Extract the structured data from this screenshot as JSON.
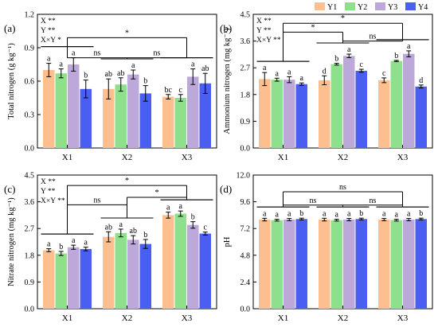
{
  "legend": {
    "items": [
      {
        "label": "Y1",
        "color": "#fdbf90"
      },
      {
        "label": "Y2",
        "color": "#8fe08c"
      },
      {
        "label": "Y3",
        "color": "#bca9d9"
      },
      {
        "label": "Y4",
        "color": "#4a5ef2"
      }
    ],
    "placement": "top-right"
  },
  "chart_data": [
    {
      "type": "bar",
      "panel_label": "(a)",
      "ylabel": "Total nitrogen (g kg⁻¹)",
      "ylim": [
        0,
        1.2
      ],
      "yticks": [
        0.0,
        0.3,
        0.6,
        0.9,
        1.2
      ],
      "categories": [
        "X1",
        "X2",
        "X3"
      ],
      "series": [
        {
          "name": "Y1",
          "values": [
            0.7,
            0.53,
            0.46
          ],
          "errors": [
            0.06,
            0.09,
            0.02
          ],
          "letters": [
            "a",
            "ab",
            "bc"
          ]
        },
        {
          "name": "Y2",
          "values": [
            0.67,
            0.57,
            0.45
          ],
          "errors": [
            0.04,
            0.06,
            0.03
          ],
          "letters": [
            "a",
            "ab",
            "c"
          ]
        },
        {
          "name": "Y3",
          "values": [
            0.75,
            0.66,
            0.64
          ],
          "errors": [
            0.06,
            0.04,
            0.07
          ],
          "letters": [
            "a",
            "a",
            "a"
          ]
        },
        {
          "name": "Y4",
          "values": [
            0.53,
            0.49,
            0.58
          ],
          "errors": [
            0.08,
            0.07,
            0.09
          ],
          "letters": [
            "b",
            "b",
            "ab"
          ]
        }
      ],
      "stats": [
        "X **",
        "Y **",
        "X×Y *"
      ],
      "comparisons": [
        {
          "from": 0,
          "to": 1,
          "level": 0.81,
          "label": "ns"
        },
        {
          "from": 1,
          "to": 2,
          "level": 0.81,
          "label": "ns"
        },
        {
          "from": 0,
          "to": 2,
          "level": 0.99,
          "label": "*"
        }
      ]
    },
    {
      "type": "bar",
      "panel_label": "(b)",
      "ylabel": "Ammonium nitrogen (mg kg⁻¹)",
      "ylim": [
        0,
        4.5
      ],
      "yticks": [
        0.0,
        0.9,
        1.8,
        2.7,
        3.6,
        4.5
      ],
      "categories": [
        "X1",
        "X2",
        "X3"
      ],
      "series": [
        {
          "name": "Y1",
          "values": [
            2.32,
            2.28,
            2.28
          ],
          "errors": [
            0.22,
            0.15,
            0.08
          ],
          "letters": [
            "a",
            "d",
            "c"
          ]
        },
        {
          "name": "Y2",
          "values": [
            2.3,
            2.82,
            2.93
          ],
          "errors": [
            0.05,
            0.03,
            0.02
          ],
          "letters": [
            "a",
            "b",
            "b"
          ]
        },
        {
          "name": "Y3",
          "values": [
            2.3,
            3.1,
            3.17
          ],
          "errors": [
            0.1,
            0.06,
            0.1
          ],
          "letters": [
            "a",
            "a",
            "a"
          ]
        },
        {
          "name": "Y4",
          "values": [
            2.15,
            2.6,
            2.07
          ],
          "errors": [
            0.04,
            0.05,
            0.05
          ],
          "letters": [
            "a",
            "c",
            "d"
          ]
        }
      ],
      "stats": [
        "X **",
        "Y **",
        "X×Y **"
      ],
      "comparisons": [
        {
          "from": 1,
          "to": 2,
          "level": 3.6,
          "label": "ns"
        },
        {
          "from": 0,
          "to": 1,
          "level": 3.9,
          "label": "*"
        },
        {
          "from": 0,
          "to": 2,
          "level": 4.2,
          "label": "*"
        }
      ]
    },
    {
      "type": "bar",
      "panel_label": "(c)",
      "ylabel": "Nitrate nitrogen (mg kg⁻¹)",
      "ylim": [
        0,
        4.5
      ],
      "yticks": [
        0.0,
        0.9,
        1.8,
        2.7,
        3.6,
        4.5
      ],
      "categories": [
        "X1",
        "X2",
        "X3"
      ],
      "series": [
        {
          "name": "Y1",
          "values": [
            1.97,
            2.42,
            3.15
          ],
          "errors": [
            0.05,
            0.17,
            0.1
          ],
          "letters": [
            "a",
            "ab",
            "a"
          ]
        },
        {
          "name": "Y2",
          "values": [
            1.86,
            2.55,
            3.2
          ],
          "errors": [
            0.07,
            0.13,
            0.09
          ],
          "letters": [
            "b",
            "a",
            "a"
          ]
        },
        {
          "name": "Y3",
          "values": [
            2.07,
            2.32,
            2.82
          ],
          "errors": [
            0.07,
            0.14,
            0.11
          ],
          "letters": [
            "a",
            "ab",
            "b"
          ]
        },
        {
          "name": "Y4",
          "values": [
            2.01,
            2.18,
            2.53
          ],
          "errors": [
            0.06,
            0.15,
            0.05
          ],
          "letters": [
            "a",
            "b",
            "c"
          ]
        }
      ],
      "stats": [
        "X **",
        "Y **",
        "X×Y **"
      ],
      "comparisons": [
        {
          "from": 0,
          "to": 1,
          "level": 3.5,
          "label": "ns"
        },
        {
          "from": 1,
          "to": 2,
          "level": 3.75,
          "label": "*"
        },
        {
          "from": 0,
          "to": 2,
          "level": 4.15,
          "label": "*"
        }
      ]
    },
    {
      "type": "bar",
      "panel_label": "(d)",
      "ylabel": "pH",
      "ylim": [
        0,
        12.0
      ],
      "yticks": [
        0.0,
        2.4,
        4.8,
        7.2,
        9.6,
        12.0
      ],
      "categories": [
        "X1",
        "X2",
        "X3"
      ],
      "series": [
        {
          "name": "Y1",
          "values": [
            8.0,
            8.0,
            8.0
          ],
          "errors": [
            0.12,
            0.12,
            0.1
          ],
          "letters": [
            "a",
            "a",
            "a"
          ]
        },
        {
          "name": "Y2",
          "values": [
            7.95,
            7.95,
            7.95
          ],
          "errors": [
            0.08,
            0.08,
            0.08
          ],
          "letters": [
            "a",
            "a",
            "a"
          ]
        },
        {
          "name": "Y3",
          "values": [
            8.0,
            8.0,
            8.0
          ],
          "errors": [
            0.1,
            0.1,
            0.1
          ],
          "letters": [
            "a",
            "a",
            "a"
          ]
        },
        {
          "name": "Y4",
          "values": [
            8.05,
            8.05,
            8.05
          ],
          "errors": [
            0.08,
            0.08,
            0.08
          ],
          "letters": [
            "b",
            "b",
            "b"
          ]
        }
      ],
      "stats": [],
      "comparisons": [
        {
          "from": 0,
          "to": 1,
          "level": 9.3,
          "label": "ns"
        },
        {
          "from": 1,
          "to": 2,
          "level": 9.3,
          "label": "ns"
        },
        {
          "from": 0,
          "to": 2,
          "level": 10.5,
          "label": "ns"
        }
      ]
    }
  ]
}
